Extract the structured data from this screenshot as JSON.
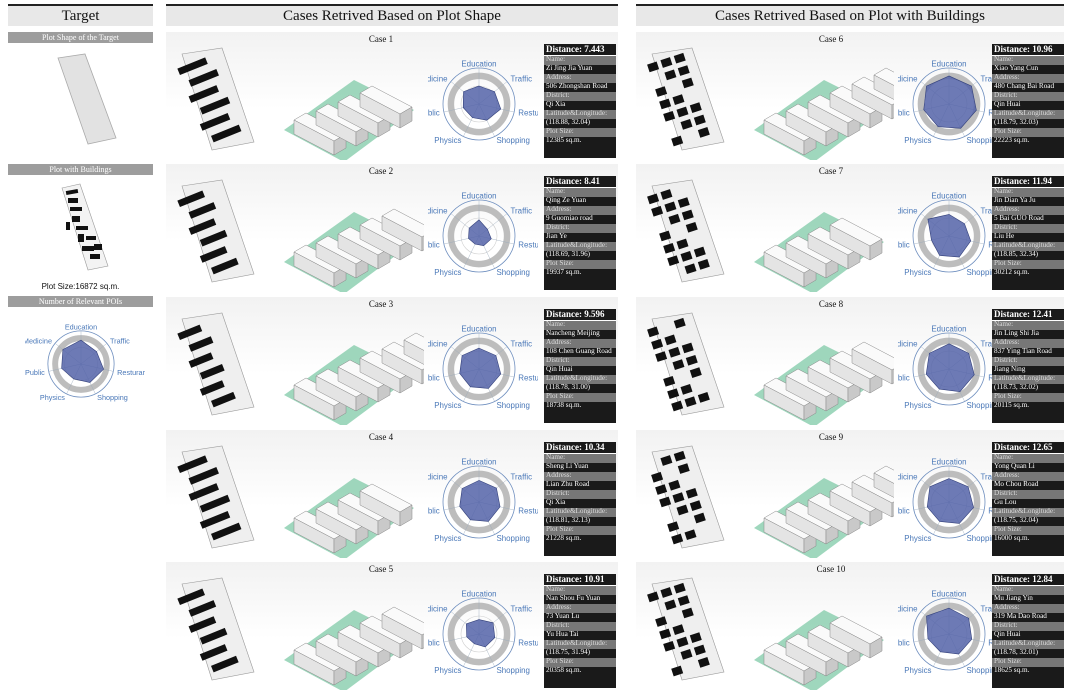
{
  "left": {
    "header": "Target",
    "plot_shape_label": "Plot Shape of the Target",
    "plot_buildings_label": "Plot with Buildings",
    "plot_size": "Plot Size:16872 sq.m.",
    "poi_label": "Number of Relevant POIs"
  },
  "shape_header": "Cases Retrived Based on Plot Shape",
  "build_header": "Cases Retrived  Based on Plot with Buildings",
  "radar_labels": [
    "Education",
    "Traffic",
    "Resturant",
    "Shopping",
    "Physics",
    "Public",
    "Medicine"
  ],
  "info_labels": {
    "name": "Name:",
    "address": "Address:",
    "district": "District:",
    "latlng": "Latitude&Longitude:",
    "size": "Plot Size:"
  },
  "cases": [
    {
      "title": "Case 1",
      "distance": "Distance:  7.443",
      "name": "Zi Jing Jia Yuan",
      "address": "506 Zhongshan Road",
      "district": "Qi Xia",
      "latlng": "(118.88, 32.04)",
      "size": "12385 sq.m.",
      "radar": [
        0.5,
        0.55,
        0.62,
        0.5,
        0.42,
        0.45,
        0.55
      ]
    },
    {
      "title": "Case 2",
      "distance": "Distance:  8.41",
      "name": "Qing Ze Yuan",
      "address": "9 Guomiao road",
      "district": "Jian Ye",
      "latlng": "(118.69, 31.96)",
      "size": "19937 sq.m.",
      "radar": [
        0.45,
        0.3,
        0.35,
        0.3,
        0.25,
        0.3,
        0.35
      ]
    },
    {
      "title": "Case 3",
      "distance": "Distance:  9.596",
      "name": "Nancheng Meijing",
      "address": "108 Chen Guang Road",
      "district": "Qin Huai",
      "latlng": "(118.78, 31.00)",
      "size": "18738 sq.m.",
      "radar": [
        0.58,
        0.6,
        0.62,
        0.6,
        0.55,
        0.55,
        0.6
      ]
    },
    {
      "title": "Case 4",
      "distance": "Distance:  10.34",
      "name": "Sheng Li Yuan",
      "address": "Lian Zhu Road",
      "district": "Qi Xia",
      "latlng": "(118.81, 32.13)",
      "size": "21228 sq.m.",
      "radar": [
        0.6,
        0.62,
        0.6,
        0.6,
        0.55,
        0.55,
        0.6
      ]
    },
    {
      "title": "Case 5",
      "distance": "Distance:  10.91",
      "name": "Nan Shou Fu Yuan",
      "address": "73 Yuan Lu",
      "district": "Yu Hua Tai",
      "latlng": "(118.75, 31.94)",
      "size": "20358 sq.m.",
      "radar": [
        0.4,
        0.5,
        0.45,
        0.4,
        0.3,
        0.35,
        0.45
      ]
    },
    {
      "title": "Case 6",
      "distance": "Distance:  10.96",
      "name": "Xiao Yang Cun",
      "address": "480 Chang Bai Road",
      "district": "Qin Huai",
      "latlng": "(118.79, 32.03)",
      "size": "22223 sq.m.",
      "radar": [
        0.78,
        0.8,
        0.78,
        0.75,
        0.7,
        0.72,
        0.8
      ]
    },
    {
      "title": "Case 7",
      "distance": "Distance:  11.94",
      "name": "Jin Dian Ya Ju",
      "address": "5 Bai GUO Road",
      "district": "Liu He",
      "latlng": "(118.85, 32.34)",
      "size": "30212 sq.m.",
      "radar": [
        0.6,
        0.55,
        0.62,
        0.65,
        0.6,
        0.5,
        0.75
      ]
    },
    {
      "title": "Case 8",
      "distance": "Distance:  12.41",
      "name": "Jin Ling Shi Jia",
      "address": "837 Ying Tian Road",
      "district": "Jiang Ning",
      "latlng": "(118.73, 32.02)",
      "size": "20115 sq.m.",
      "radar": [
        0.7,
        0.7,
        0.72,
        0.7,
        0.62,
        0.65,
        0.7
      ]
    },
    {
      "title": "Case 9",
      "distance": "Distance:  12.65",
      "name": "Yong Quan Li",
      "address": "Mo Chou Road",
      "district": "Gu Lou",
      "latlng": "(118.75, 32.04)",
      "size": "16000 sq.m.",
      "radar": [
        0.65,
        0.68,
        0.7,
        0.66,
        0.6,
        0.62,
        0.68
      ]
    },
    {
      "title": "Case 10",
      "distance": "Distance:  12.84",
      "name": "Mu Jiang Yin",
      "address": "319 Ma Dao Road",
      "district": "Qin Huai",
      "latlng": "(118.78, 32.01)",
      "size": "18625 sq.m.",
      "radar": [
        0.72,
        0.7,
        0.65,
        0.62,
        0.55,
        0.6,
        0.8
      ]
    }
  ],
  "target_radar": [
    0.72,
    0.6,
    0.7,
    0.62,
    0.5,
    0.6,
    0.7
  ]
}
